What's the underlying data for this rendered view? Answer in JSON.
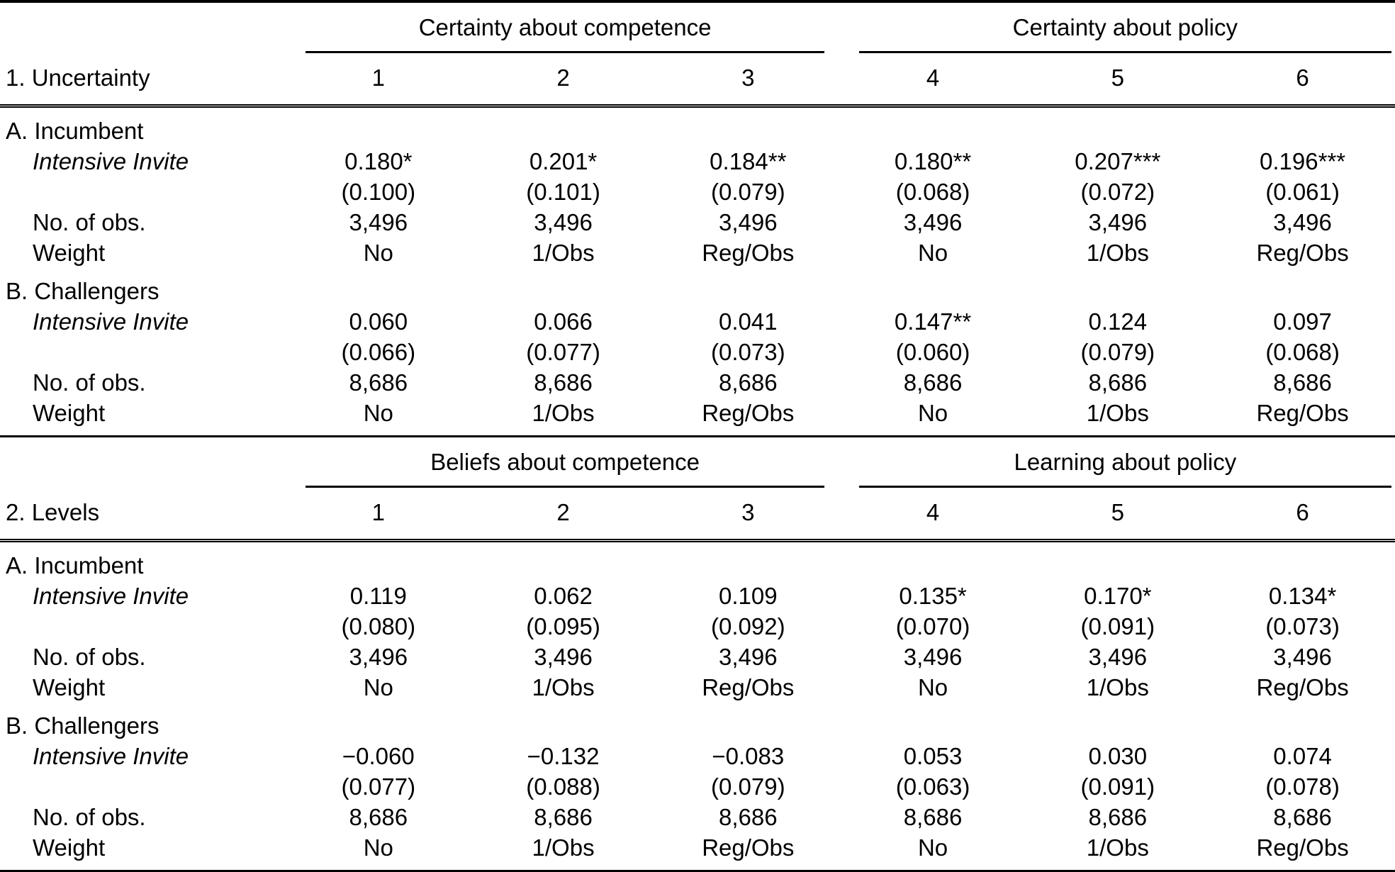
{
  "table": {
    "panels": [
      {
        "label": "1. Uncertainty",
        "groups": [
          {
            "label": "Certainty about competence"
          },
          {
            "label": "Certainty about policy"
          }
        ],
        "columns": [
          "1",
          "2",
          "3",
          "4",
          "5",
          "6"
        ],
        "sections": [
          {
            "label": "A. Incumbent",
            "variable_label": "Intensive Invite",
            "coefficients": [
              "0.180*",
              "0.201*",
              "0.184**",
              "0.180**",
              "0.207***",
              "0.196***"
            ],
            "std_errors": [
              "(0.100)",
              "(0.101)",
              "(0.079)",
              "(0.068)",
              "(0.072)",
              "(0.061)"
            ],
            "obs_label": "No. of obs.",
            "obs": [
              "3,496",
              "3,496",
              "3,496",
              "3,496",
              "3,496",
              "3,496"
            ],
            "weight_label": "Weight",
            "weights": [
              "No",
              "1/Obs",
              "Reg/Obs",
              "No",
              "1/Obs",
              "Reg/Obs"
            ]
          },
          {
            "label": "B. Challengers",
            "variable_label": "Intensive Invite",
            "coefficients": [
              "0.060",
              "0.066",
              "0.041",
              "0.147**",
              "0.124",
              "0.097"
            ],
            "std_errors": [
              "(0.066)",
              "(0.077)",
              "(0.073)",
              "(0.060)",
              "(0.079)",
              "(0.068)"
            ],
            "obs_label": "No. of obs.",
            "obs": [
              "8,686",
              "8,686",
              "8,686",
              "8,686",
              "8,686",
              "8,686"
            ],
            "weight_label": "Weight",
            "weights": [
              "No",
              "1/Obs",
              "Reg/Obs",
              "No",
              "1/Obs",
              "Reg/Obs"
            ]
          }
        ]
      },
      {
        "label": "2. Levels",
        "groups": [
          {
            "label": "Beliefs about competence"
          },
          {
            "label": "Learning about policy"
          }
        ],
        "columns": [
          "1",
          "2",
          "3",
          "4",
          "5",
          "6"
        ],
        "sections": [
          {
            "label": "A. Incumbent",
            "variable_label": "Intensive Invite",
            "coefficients": [
              "0.119",
              "0.062",
              "0.109",
              "0.135*",
              "0.170*",
              "0.134*"
            ],
            "std_errors": [
              "(0.080)",
              "(0.095)",
              "(0.092)",
              "(0.070)",
              "(0.091)",
              "(0.073)"
            ],
            "obs_label": "No. of obs.",
            "obs": [
              "3,496",
              "3,496",
              "3,496",
              "3,496",
              "3,496",
              "3,496"
            ],
            "weight_label": "Weight",
            "weights": [
              "No",
              "1/Obs",
              "Reg/Obs",
              "No",
              "1/Obs",
              "Reg/Obs"
            ]
          },
          {
            "label": "B. Challengers",
            "variable_label": "Intensive Invite",
            "coefficients": [
              "−0.060",
              "−0.132",
              "−0.083",
              "0.053",
              "0.030",
              "0.074"
            ],
            "std_errors": [
              "(0.077)",
              "(0.088)",
              "(0.079)",
              "(0.063)",
              "(0.091)",
              "(0.078)"
            ],
            "obs_label": "No. of obs.",
            "obs": [
              "8,686",
              "8,686",
              "8,686",
              "8,686",
              "8,686",
              "8,686"
            ],
            "weight_label": "Weight",
            "weights": [
              "No",
              "1/Obs",
              "Reg/Obs",
              "No",
              "1/Obs",
              "Reg/Obs"
            ]
          }
        ]
      }
    ]
  }
}
